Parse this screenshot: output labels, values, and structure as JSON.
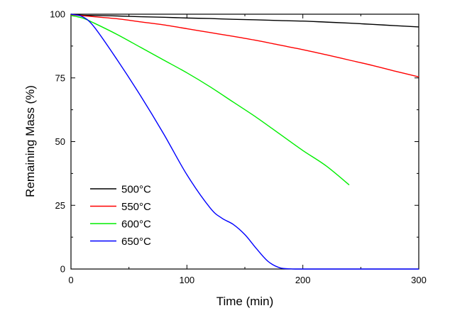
{
  "chart_data": {
    "type": "line",
    "title": "",
    "xlabel": "Time (min)",
    "ylabel": "Remaining Mass (%)",
    "xlim": [
      0,
      300
    ],
    "ylim": [
      0,
      100
    ],
    "xticks": [
      0,
      100,
      200,
      300
    ],
    "yticks": [
      0,
      25,
      50,
      75,
      100
    ],
    "grid": false,
    "legend_position": "bottom-left",
    "series": [
      {
        "name": "500°C",
        "color": "#000000",
        "x": [
          0,
          10,
          20,
          40,
          60,
          80,
          100,
          120,
          140,
          160,
          180,
          200,
          220,
          240,
          260,
          280,
          300
        ],
        "y": [
          100,
          99.6,
          99.5,
          99.3,
          99.0,
          98.8,
          98.5,
          98.3,
          98.0,
          97.8,
          97.5,
          97.3,
          96.9,
          96.5,
          96.0,
          95.5,
          95.0
        ]
      },
      {
        "name": "550°C",
        "color": "#ff0000",
        "x": [
          0,
          10,
          20,
          40,
          60,
          80,
          100,
          120,
          140,
          160,
          180,
          200,
          220,
          240,
          260,
          280,
          300
        ],
        "y": [
          99.8,
          99.4,
          99.0,
          98.2,
          97.0,
          95.8,
          94.3,
          92.8,
          91.3,
          89.7,
          87.9,
          86.1,
          84.1,
          82.0,
          79.9,
          77.6,
          75.4
        ]
      },
      {
        "name": "600°C",
        "color": "#00ee00",
        "x": [
          0,
          10,
          20,
          40,
          60,
          80,
          100,
          120,
          140,
          160,
          180,
          200,
          220,
          240
        ],
        "y": [
          99.5,
          98.5,
          96.5,
          92.0,
          87.0,
          82.0,
          77.0,
          71.5,
          65.5,
          59.5,
          53.0,
          46.5,
          40.5,
          33.0
        ]
      },
      {
        "name": "650°C",
        "color": "#0000ff",
        "x": [
          0,
          10,
          20,
          40,
          60,
          80,
          100,
          120,
          130,
          140,
          150,
          160,
          170,
          180,
          190,
          200,
          250,
          300
        ],
        "y": [
          100,
          99,
          95,
          82,
          68,
          53,
          37,
          24,
          20,
          17.5,
          13.5,
          8,
          3,
          0.5,
          0.05,
          0,
          0,
          0
        ]
      }
    ]
  }
}
